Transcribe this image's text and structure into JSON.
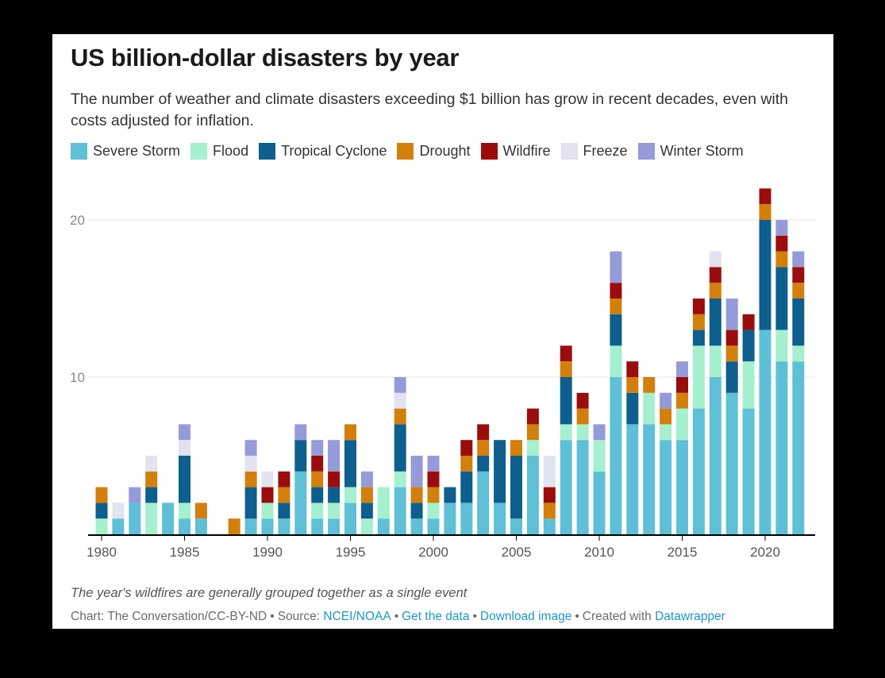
{
  "header": {
    "title": "US billion-dollar disasters by year",
    "subtitle": "The number of weather and climate disasters exceeding $1 billion has grow in recent decades, even with costs adjusted for inflation."
  },
  "notes": "The year's wildfires are generally grouped together as a single event",
  "footer": {
    "credit": "Chart: The Conversation/CC-BY-ND",
    "source_label": "Source:",
    "source_link": "NCEI/NOAA",
    "get_data": "Get the data",
    "download": "Download image",
    "created_with": "Created with",
    "datawrapper": "Datawrapper"
  },
  "chart_data": {
    "type": "bar",
    "stacked": true,
    "title": "US billion-dollar disasters by year",
    "xlabel": "",
    "ylabel": "",
    "ylim": [
      0,
      22
    ],
    "yticks": [
      10,
      20
    ],
    "xticks": [
      1980,
      1985,
      1990,
      1995,
      2000,
      2005,
      2010,
      2015,
      2020
    ],
    "grid": true,
    "legend_position": "top",
    "categories": [
      1980,
      1981,
      1982,
      1983,
      1984,
      1985,
      1986,
      1987,
      1988,
      1989,
      1990,
      1991,
      1992,
      1993,
      1994,
      1995,
      1996,
      1997,
      1998,
      1999,
      2000,
      2001,
      2002,
      2003,
      2004,
      2005,
      2006,
      2007,
      2008,
      2009,
      2010,
      2011,
      2012,
      2013,
      2014,
      2015,
      2016,
      2017,
      2018,
      2019,
      2020,
      2021,
      2022
    ],
    "series": [
      {
        "name": "Severe Storm",
        "color": "#5fbfd6",
        "values": [
          0,
          1,
          2,
          0,
          2,
          1,
          1,
          0,
          0,
          1,
          1,
          1,
          4,
          1,
          1,
          2,
          0,
          1,
          3,
          1,
          1,
          2,
          2,
          4,
          2,
          1,
          5,
          1,
          6,
          6,
          4,
          10,
          7,
          7,
          6,
          6,
          8,
          10,
          9,
          8,
          13,
          11,
          11
        ]
      },
      {
        "name": "Flood",
        "color": "#a5f0cf",
        "values": [
          1,
          0,
          0,
          2,
          0,
          1,
          0,
          0,
          0,
          0,
          1,
          0,
          0,
          1,
          1,
          1,
          1,
          2,
          1,
          0,
          1,
          0,
          0,
          0,
          0,
          0,
          1,
          0,
          1,
          1,
          2,
          2,
          0,
          2,
          1,
          2,
          4,
          2,
          0,
          3,
          0,
          2,
          1
        ]
      },
      {
        "name": "Tropical Cyclone",
        "color": "#0e5e8e",
        "values": [
          1,
          0,
          0,
          1,
          0,
          3,
          0,
          0,
          0,
          2,
          0,
          1,
          2,
          1,
          1,
          3,
          1,
          0,
          3,
          1,
          0,
          1,
          2,
          1,
          4,
          4,
          0,
          0,
          3,
          0,
          0,
          2,
          2,
          0,
          0,
          0,
          1,
          3,
          2,
          2,
          7,
          4,
          3
        ]
      },
      {
        "name": "Drought",
        "color": "#d37f0c",
        "values": [
          1,
          0,
          0,
          1,
          0,
          0,
          1,
          0,
          1,
          1,
          0,
          1,
          0,
          1,
          0,
          1,
          1,
          0,
          1,
          1,
          1,
          0,
          1,
          1,
          0,
          1,
          1,
          1,
          1,
          1,
          0,
          1,
          1,
          1,
          1,
          1,
          1,
          1,
          1,
          0,
          1,
          1,
          1
        ]
      },
      {
        "name": "Wildfire",
        "color": "#9b0d0d",
        "values": [
          0,
          0,
          0,
          0,
          0,
          0,
          0,
          0,
          0,
          0,
          1,
          1,
          0,
          1,
          1,
          0,
          0,
          0,
          0,
          0,
          1,
          0,
          1,
          1,
          0,
          0,
          1,
          1,
          1,
          1,
          0,
          1,
          1,
          0,
          0,
          1,
          1,
          1,
          1,
          1,
          1,
          1,
          1
        ]
      },
      {
        "name": "Freeze",
        "color": "#e2e2f0",
        "values": [
          0,
          1,
          0,
          1,
          0,
          1,
          0,
          0,
          0,
          1,
          1,
          0,
          0,
          0,
          0,
          0,
          0,
          0,
          1,
          0,
          0,
          0,
          0,
          0,
          0,
          0,
          0,
          2,
          0,
          0,
          0,
          0,
          0,
          0,
          0,
          0,
          0,
          1,
          0,
          0,
          0,
          0,
          0
        ]
      },
      {
        "name": "Winter Storm",
        "color": "#959bd9",
        "values": [
          0,
          0,
          1,
          0,
          0,
          1,
          0,
          0,
          0,
          1,
          0,
          0,
          1,
          1,
          2,
          0,
          1,
          0,
          1,
          2,
          1,
          0,
          0,
          0,
          0,
          0,
          0,
          0,
          0,
          0,
          1,
          2,
          0,
          0,
          1,
          1,
          0,
          0,
          2,
          0,
          0,
          1,
          1
        ]
      }
    ]
  }
}
